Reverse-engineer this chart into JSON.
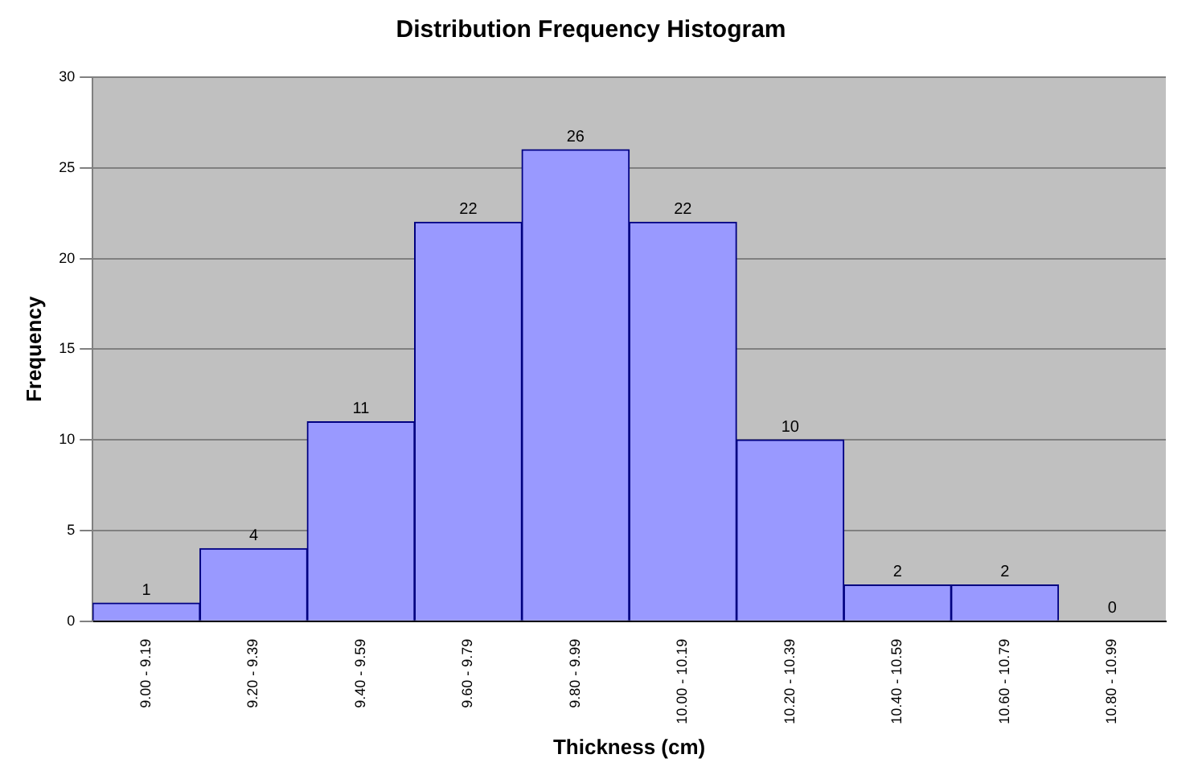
{
  "chart_data": {
    "type": "bar",
    "title": "Distribution Frequency Histogram",
    "xlabel": "Thickness (cm)",
    "ylabel": "Frequency",
    "categories": [
      "9.00 - 9.19",
      "9.20 - 9.39",
      "9.40 - 9.59",
      "9.60 - 9.79",
      "9.80 - 9.99",
      "10.00 - 10.19",
      "10.20 - 10.39",
      "10.40 - 10.59",
      "10.60 - 10.79",
      "10.80 - 10.99"
    ],
    "values": [
      1,
      4,
      11,
      22,
      26,
      22,
      10,
      2,
      2,
      0
    ],
    "color": "#9999ff",
    "ylim": [
      0,
      30
    ],
    "yticks": [
      0,
      5,
      10,
      15,
      20,
      25,
      30
    ],
    "grid": "y",
    "legend": false,
    "data_labels": true
  }
}
